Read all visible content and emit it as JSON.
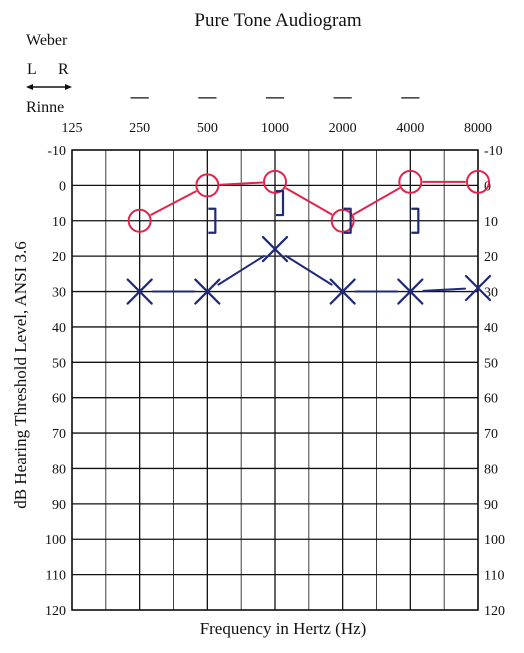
{
  "chart_data": {
    "type": "line",
    "title": "Pure Tone Audiogram",
    "xlabel": "Frequency in Hertz (Hz)",
    "ylabel": "dB Hearing Threshold Level, ANSI 3.6",
    "x_categories": [
      "125",
      "250",
      "500",
      "1000",
      "2000",
      "4000",
      "8000"
    ],
    "y_ticks": [
      "-10",
      "0",
      "10",
      "20",
      "30",
      "40",
      "50",
      "60",
      "70",
      "80",
      "90",
      "100",
      "110",
      "120"
    ],
    "ylim": [
      -10,
      120
    ],
    "y_inverted": true,
    "grid": true,
    "legend": {
      "weber_label": "Weber",
      "left_label": "L",
      "right_label": "R",
      "rinne_label": "Rinne"
    },
    "weber_marks": [
      "—",
      "—",
      "—",
      "—",
      "—"
    ],
    "series": [
      {
        "symbol": "O",
        "color": "#e0244a",
        "x": [
          "250",
          "500",
          "1000",
          "2000",
          "4000",
          "8000"
        ],
        "values": [
          10,
          0,
          -1,
          10,
          -1,
          -1
        ]
      },
      {
        "symbol": "X",
        "color": "#1f2a78",
        "x": [
          "250",
          "500",
          "1000",
          "2000",
          "4000",
          "8000"
        ],
        "values": [
          30,
          30,
          18,
          30,
          30,
          29
        ]
      },
      {
        "symbol": "]",
        "color": "#1f2a78",
        "x": [
          "500",
          "1000",
          "2000",
          "4000"
        ],
        "values": [
          10,
          5,
          10,
          10
        ]
      }
    ]
  }
}
